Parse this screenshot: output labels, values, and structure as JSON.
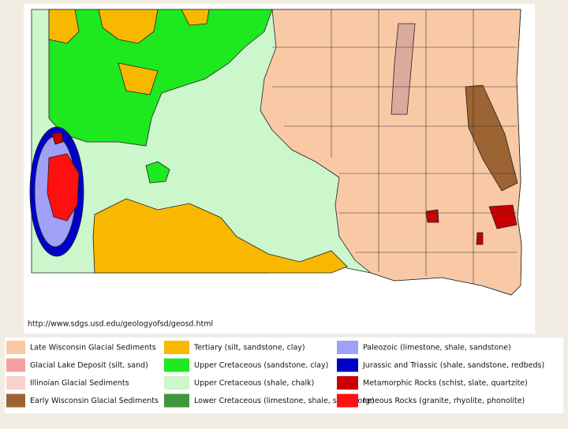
{
  "source_url": "http://www.sdgs.usd.edu/geologyofsd/geosd.html",
  "legend": [
    {
      "label": "Late Wisconsin Glacial Sediments",
      "color": "#f9c9a6"
    },
    {
      "label": "Glacial Lake Deposit (silt, sand)",
      "color": "#f4a0a0"
    },
    {
      "label": "Illinoian Glacial Sediments",
      "color": "#fbd0d0"
    },
    {
      "label": "Early Wisconsin Glacial Sediments",
      "color": "#9c6432"
    },
    {
      "label": "Tertiary (silt, sandstone, clay)",
      "color": "#f9b800"
    },
    {
      "label": "Upper Cretaceous (sandstone, clay)",
      "color": "#1ee81e"
    },
    {
      "label": "Upper Cretaceous (shale, chalk)",
      "color": "#ccf6cc"
    },
    {
      "label": "Lower Cretaceous (limestone, shale, sandstone)",
      "color": "#3c963c"
    },
    {
      "label": "Paleozoic (limestone, shale, sandstone)",
      "color": "#a0a0f6"
    },
    {
      "label": "Jurassic and Triassic (shale, sandstone, redbeds)",
      "color": "#0000c8"
    },
    {
      "label": "Metamorphic Rocks (schist, slate, quartzite)",
      "color": "#c80000"
    },
    {
      "label": "Igneous Rocks (granite, rhyolite, phonolite)",
      "color": "#ff1010"
    }
  ]
}
